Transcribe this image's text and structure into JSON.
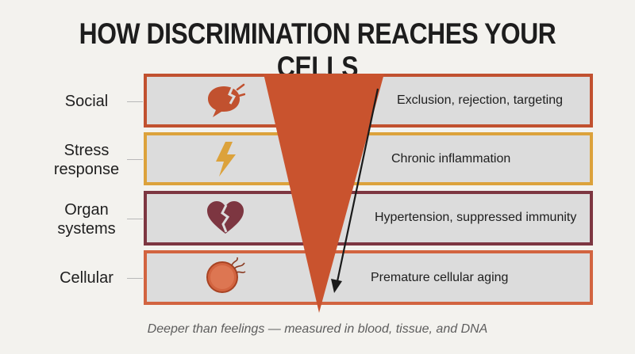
{
  "title": "HOW DISCRIMINATION REACHES YOUR CELLS",
  "levels": [
    {
      "label": "Social",
      "description": "Exclusion, rejection, targeting",
      "icon": "speech-bubble-icon",
      "color": "#c1512f"
    },
    {
      "label": "Stress\nresponse",
      "description": "Chronic inflammation",
      "icon": "lightning-bolt-icon",
      "color": "#dca23b"
    },
    {
      "label": "Organ\nsystems",
      "description": "Hypertension, suppressed immunity",
      "icon": "broken-heart-icon",
      "color": "#7d3641"
    },
    {
      "label": "Cellular",
      "description": "Premature cellular aging",
      "icon": "cell-icon",
      "color": "#d26440"
    }
  ],
  "caption": "Deeper than feelings — measured in blood, tissue, and DNA",
  "colors": {
    "wedge": "#c9532e",
    "arrow": "#1a1a1a",
    "band_fill": "#dcdcdc"
  }
}
